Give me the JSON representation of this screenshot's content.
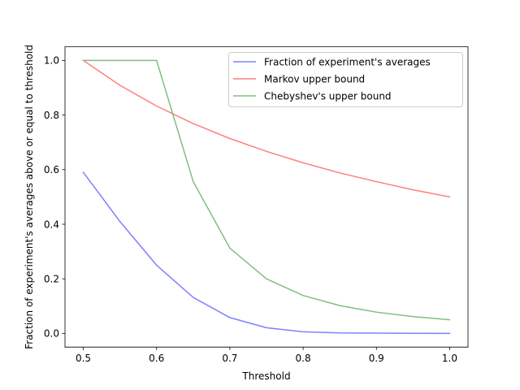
{
  "chart_data": {
    "type": "line",
    "title": "",
    "xlabel": "Threshold",
    "ylabel": "Fraction of experiment's averages above or equal to threshold",
    "xlim": [
      0.475,
      1.025
    ],
    "ylim": [
      -0.05,
      1.05
    ],
    "xticks": [
      0.5,
      0.6,
      0.7,
      0.8,
      0.9,
      1.0
    ],
    "xtick_labels": [
      "0.5",
      "0.6",
      "0.7",
      "0.8",
      "0.9",
      "1.0"
    ],
    "yticks": [
      0.0,
      0.2,
      0.4,
      0.6,
      0.8,
      1.0
    ],
    "ytick_labels": [
      "0.0",
      "0.2",
      "0.4",
      "0.6",
      "0.8",
      "1.0"
    ],
    "grid": false,
    "legend_position": "upper right",
    "x": [
      0.5,
      0.55,
      0.6,
      0.65,
      0.7,
      0.75,
      0.8,
      0.85,
      0.9,
      0.95,
      1.0
    ],
    "series": [
      {
        "name": "Fraction of experiment's averages",
        "color": "#7f7fff",
        "values": [
          0.59,
          0.41,
          0.25,
          0.132,
          0.058,
          0.021,
          0.006,
          0.002,
          0.001,
          0.0005,
          0.0002
        ]
      },
      {
        "name": "Markov upper bound",
        "color": "#ff7f7f",
        "values": [
          1.0,
          0.909,
          0.833,
          0.769,
          0.714,
          0.667,
          0.625,
          0.588,
          0.556,
          0.526,
          0.5
        ]
      },
      {
        "name": "Chebyshev's upper bound",
        "color": "#7fbf7f",
        "values": [
          1.0,
          1.0,
          1.0,
          0.556,
          0.3125,
          0.2,
          0.139,
          0.102,
          0.078,
          0.062,
          0.05
        ]
      }
    ]
  }
}
